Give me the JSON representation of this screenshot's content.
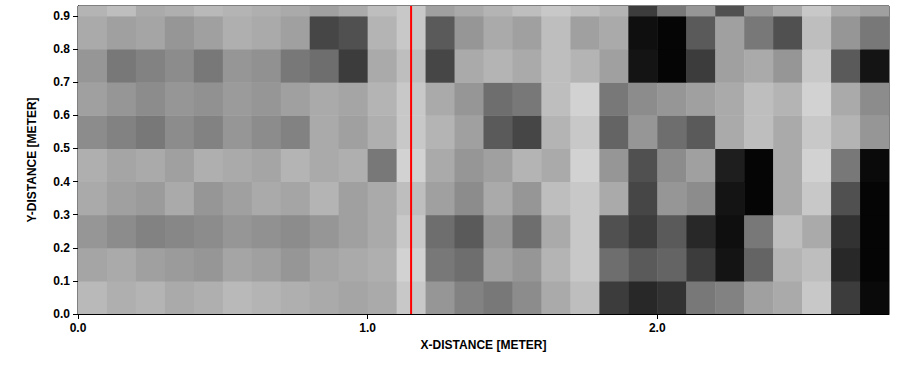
{
  "chart_data": {
    "type": "heatmap",
    "xlabel": "X-DISTANCE [METER]",
    "ylabel": "Y-DISTANCE [METER]",
    "xlim": [
      0,
      2.8
    ],
    "ylim": [
      0,
      0.93
    ],
    "xticks": [
      {
        "value": 0,
        "label": "0.0"
      },
      {
        "value": 1,
        "label": "1.0"
      },
      {
        "value": 2,
        "label": "2.0"
      }
    ],
    "yticks": [
      {
        "value": 0,
        "label": "0.0"
      },
      0.1,
      0.2,
      0.3,
      0.4,
      0.5,
      0.6,
      0.7,
      0.8,
      0.9
    ],
    "grid": false,
    "x_edges": [
      0,
      0.1,
      0.2,
      0.3,
      0.4,
      0.5,
      0.6,
      0.7,
      0.8,
      0.9,
      1.0,
      1.1,
      1.2,
      1.3,
      1.4,
      1.5,
      1.6,
      1.7,
      1.8,
      1.9,
      2.0,
      2.1,
      2.2,
      2.3,
      2.4,
      2.5,
      2.6,
      2.7,
      2.8
    ],
    "y_edges": [
      0,
      0.1,
      0.2,
      0.3,
      0.4,
      0.5,
      0.6,
      0.7,
      0.8,
      0.9,
      0.93
    ],
    "value_range": [
      0,
      255
    ],
    "cells": [
      [
        185,
        175,
        180,
        170,
        175,
        185,
        180,
        175,
        170,
        165,
        170,
        200,
        150,
        130,
        120,
        140,
        170,
        190,
        60,
        40,
        50,
        120,
        130,
        160,
        170,
        200,
        60,
        10
      ],
      [
        165,
        170,
        160,
        155,
        150,
        165,
        160,
        150,
        165,
        170,
        175,
        210,
        120,
        110,
        160,
        150,
        180,
        200,
        110,
        90,
        100,
        60,
        20,
        100,
        180,
        190,
        40,
        5
      ],
      [
        150,
        140,
        130,
        135,
        140,
        150,
        145,
        140,
        150,
        160,
        170,
        200,
        110,
        90,
        150,
        110,
        170,
        200,
        80,
        60,
        90,
        40,
        15,
        120,
        190,
        170,
        50,
        5
      ],
      [
        170,
        160,
        155,
        170,
        150,
        160,
        170,
        165,
        180,
        160,
        170,
        190,
        160,
        140,
        170,
        150,
        190,
        200,
        170,
        70,
        150,
        140,
        20,
        5,
        170,
        200,
        80,
        5
      ],
      [
        175,
        165,
        170,
        160,
        175,
        170,
        165,
        180,
        170,
        175,
        120,
        210,
        170,
        150,
        160,
        180,
        170,
        210,
        150,
        80,
        140,
        160,
        30,
        5,
        170,
        210,
        120,
        10
      ],
      [
        140,
        130,
        120,
        140,
        130,
        150,
        140,
        130,
        170,
        160,
        175,
        200,
        180,
        160,
        90,
        70,
        180,
        200,
        100,
        150,
        110,
        90,
        170,
        190,
        170,
        200,
        180,
        150
      ],
      [
        160,
        150,
        140,
        150,
        145,
        155,
        150,
        160,
        170,
        165,
        180,
        200,
        170,
        150,
        110,
        120,
        190,
        210,
        120,
        140,
        150,
        160,
        170,
        190,
        180,
        210,
        170,
        140
      ],
      [
        150,
        120,
        130,
        140,
        120,
        150,
        145,
        120,
        110,
        60,
        170,
        190,
        70,
        170,
        180,
        170,
        190,
        180,
        160,
        20,
        5,
        60,
        160,
        170,
        150,
        200,
        90,
        20
      ],
      [
        170,
        160,
        165,
        150,
        160,
        175,
        170,
        160,
        70,
        80,
        180,
        200,
        90,
        150,
        170,
        160,
        190,
        160,
        170,
        15,
        5,
        90,
        160,
        120,
        80,
        190,
        150,
        120
      ],
      [
        180,
        190,
        170,
        175,
        185,
        180,
        175,
        170,
        160,
        170,
        190,
        200,
        160,
        170,
        180,
        190,
        200,
        190,
        180,
        60,
        120,
        150,
        80,
        150,
        170,
        200,
        170,
        160
      ]
    ],
    "vline": {
      "x": 1.15,
      "color": "#ff0000"
    }
  }
}
